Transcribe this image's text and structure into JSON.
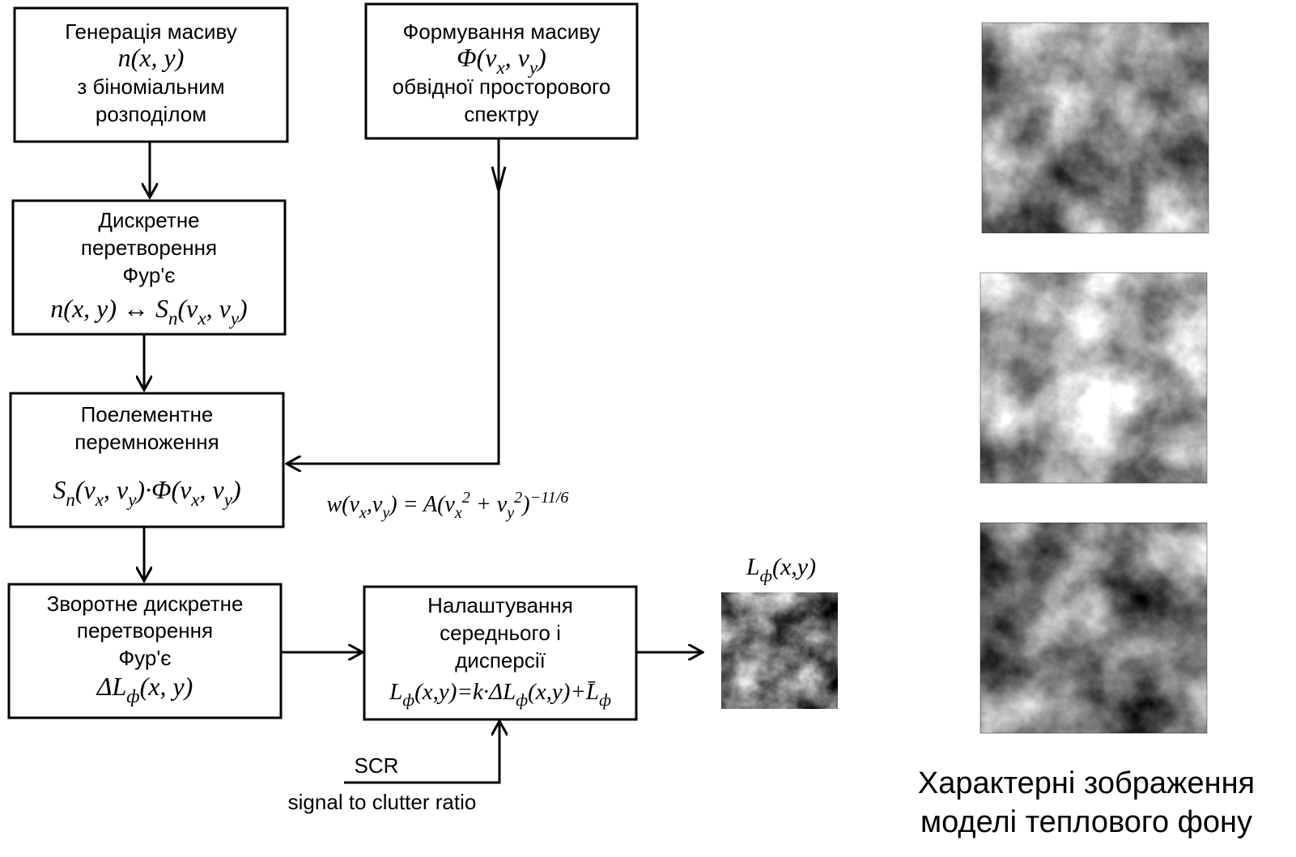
{
  "nodes": [
    {
      "content": [
        "Генерація масиву",
        {
          "formula": [
            "n(x, y)"
          ]
        },
        "з біноміальним",
        "розподілом"
      ]
    },
    {
      "content": [
        "Формування масиву",
        {
          "formula": [
            "Φ(v",
            {
              "sub": "x"
            },
            ", v",
            {
              "sub": "y"
            },
            ")"
          ]
        },
        "обвідної просторового",
        "спектру"
      ]
    },
    {
      "content": [
        "Дискретне",
        "перетворення",
        "Фур'є",
        {
          "formula": [
            "n(x, y) ↔ S",
            {
              "sub": "n"
            },
            "(v",
            {
              "sub": "x"
            },
            ", v",
            {
              "sub": "y"
            },
            ")"
          ]
        }
      ]
    },
    {
      "content": [
        "Поелементне",
        "перемноження",
        {
          "formula": [
            "S",
            {
              "sub": "n"
            },
            "(v",
            {
              "sub": "x"
            },
            ", v",
            {
              "sub": "y"
            },
            ")·Φ(v",
            {
              "sub": "x"
            },
            ", v",
            {
              "sub": "y"
            },
            ")"
          ]
        }
      ]
    },
    {
      "content": [
        "Зворотне дискретне",
        "перетворення",
        "Фур'є",
        {
          "formula": [
            "ΔL",
            {
              "sub": "ф"
            },
            "(x, y)"
          ]
        }
      ]
    },
    {
      "content": [
        "Налаштування",
        "середнього і",
        "дисперсії",
        {
          "formula": [
            "L",
            {
              "sub": "ф"
            },
            "(x,y)=k·ΔL",
            {
              "sub": "ф"
            },
            "(x,y)+L̄",
            {
              "sub": "ф"
            }
          ]
        }
      ]
    }
  ],
  "spectrum_formula": [
    "w(v",
    {
      "sub": "x"
    },
    ",v",
    {
      "sub": "y"
    },
    ") = A(v",
    {
      "sub": "x"
    },
    {
      "sup": "2"
    },
    " + v",
    {
      "sub": "y"
    },
    {
      "sup": "2"
    },
    ")",
    {
      "sup": "−11/6"
    }
  ],
  "output_label": [
    "L",
    {
      "sub": "ф"
    },
    "(x,y)"
  ],
  "scr": {
    "label": "SCR",
    "description": "signal to clutter ratio"
  },
  "caption": [
    "Характерні зображення",
    "моделі теплового фону"
  ]
}
